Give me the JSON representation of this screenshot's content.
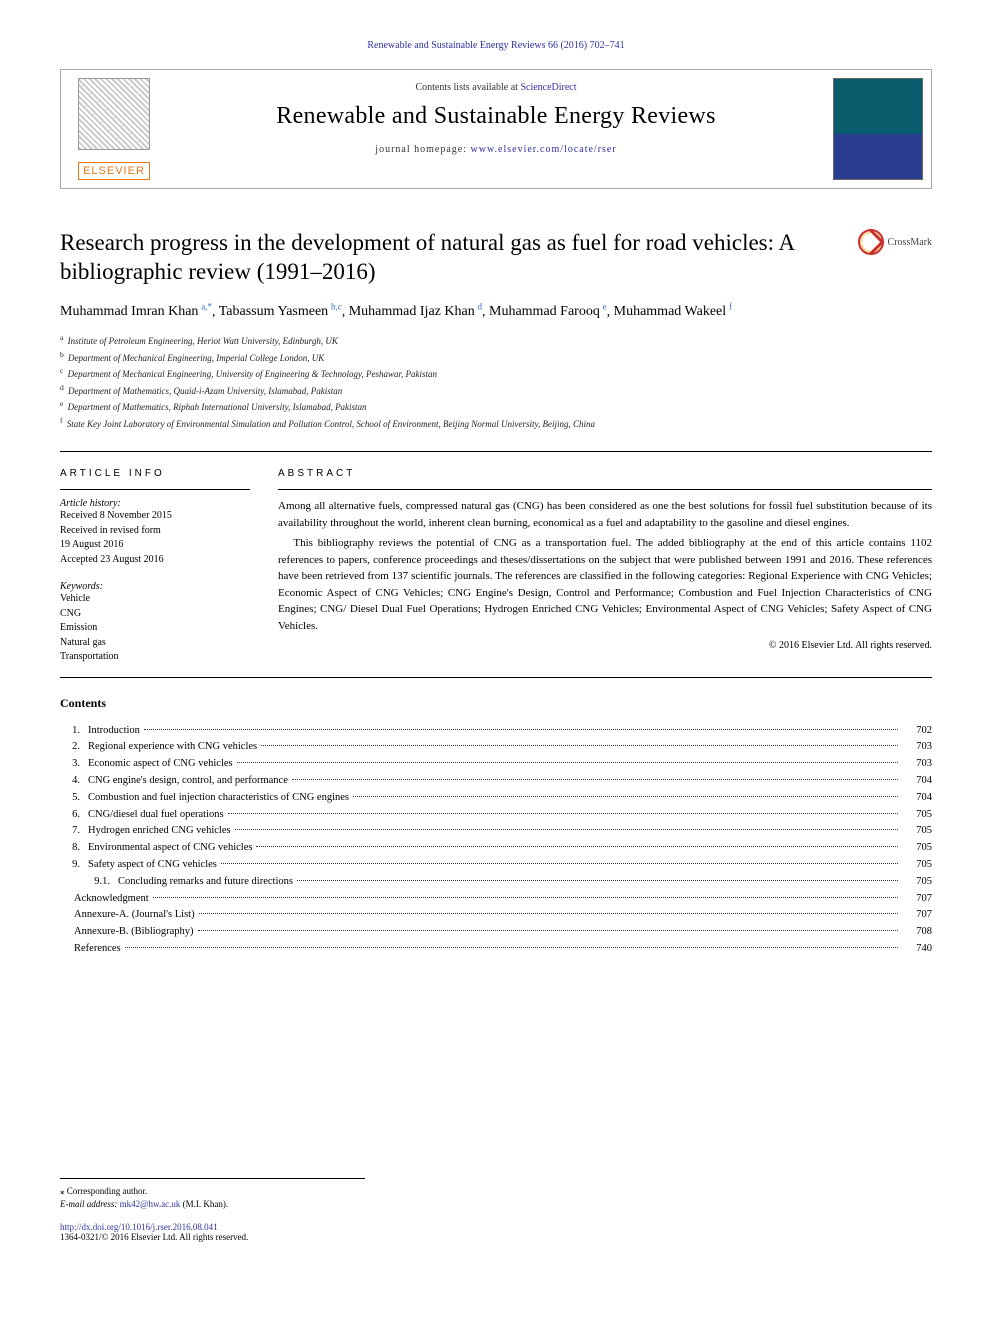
{
  "journal_ref_top": {
    "prefix": "Renewable and Sustainable Energy Reviews 66 (2016) 702–741"
  },
  "header": {
    "contents_prefix": "Contents lists available at ",
    "contents_link": "ScienceDirect",
    "journal_name": "Renewable and Sustainable Energy Reviews",
    "homepage_prefix": "journal homepage: ",
    "homepage_link": "www.elsevier.com/locate/rser",
    "elsevier_text": "ELSEVIER"
  },
  "crossmark_label": "CrossMark",
  "article": {
    "title": "Research progress in the development of natural gas as fuel for road vehicles: A bibliographic review (1991–2016)",
    "authors": [
      {
        "name": "Muhammad Imran Khan",
        "sup": "a,",
        "corr": true
      },
      {
        "name": "Tabassum Yasmeen",
        "sup": "b,c"
      },
      {
        "name": "Muhammad Ijaz Khan",
        "sup": "d"
      },
      {
        "name": "Muhammad Farooq",
        "sup": "e"
      },
      {
        "name": "Muhammad Wakeel",
        "sup": "f"
      }
    ],
    "affiliations": [
      {
        "key": "a",
        "text": "Institute of Petroleum Engineering, Heriot Watt University, Edinburgh, UK"
      },
      {
        "key": "b",
        "text": "Department of Mechanical Engineering, Imperial College London, UK"
      },
      {
        "key": "c",
        "text": "Department of Mechanical Engineering, University of Engineering & Technology, Peshawar, Pakistan"
      },
      {
        "key": "d",
        "text": "Department of Mathematics, Quaid-i-Azam University, Islamabad, Pakistan"
      },
      {
        "key": "e",
        "text": "Department of Mathematics, Riphah International University, Islamabad, Pakistan"
      },
      {
        "key": "f",
        "text": "State Key Joint Laboratory of Environmental Simulation and Pollution Control, School of Environment, Beijing Normal University, Beijing, China"
      }
    ]
  },
  "article_info": {
    "heading": "ARTICLE INFO",
    "history_label": "Article history:",
    "history": [
      "Received 8 November 2015",
      "Received in revised form",
      "19 August 2016",
      "Accepted 23 August 2016"
    ],
    "keywords_label": "Keywords:",
    "keywords": [
      "Vehicle",
      "CNG",
      "Emission",
      "Natural gas",
      "Transportation"
    ]
  },
  "abstract": {
    "heading": "ABSTRACT",
    "paragraphs": [
      "Among all alternative fuels, compressed natural gas (CNG) has been considered as one the best solutions for fossil fuel substitution because of its availability throughout the world, inherent clean burning, economical as a fuel and adaptability to the gasoline and diesel engines.",
      "This bibliography reviews the potential of CNG as a transportation fuel. The added bibliography at the end of this article contains 1102 references to papers, conference proceedings and theses/dissertations on the subject that were published between 1991 and 2016. These references have been retrieved from 137 scientific journals. The references are classified in the following categories: Regional Experience with CNG Vehicles; Economic Aspect of CNG Vehicles; CNG Engine's Design, Control and Performance; Combustion and Fuel Injection Characteristics of CNG Engines; CNG/ Diesel Dual Fuel Operations; Hydrogen Enriched CNG Vehicles; Environmental Aspect of CNG Vehicles; Safety Aspect of CNG Vehicles."
    ],
    "copyright": "© 2016 Elsevier Ltd. All rights reserved."
  },
  "contents": {
    "heading": "Contents",
    "items": [
      {
        "num": "1.",
        "level": 1,
        "title": "Introduction",
        "page": "702"
      },
      {
        "num": "2.",
        "level": 1,
        "title": "Regional experience with CNG vehicles",
        "page": "703"
      },
      {
        "num": "3.",
        "level": 1,
        "title": "Economic aspect of CNG vehicles",
        "page": "703"
      },
      {
        "num": "4.",
        "level": 1,
        "title": "CNG engine's design, control, and performance",
        "page": "704"
      },
      {
        "num": "5.",
        "level": 1,
        "title": "Combustion and fuel injection characteristics of CNG engines",
        "page": "704"
      },
      {
        "num": "6.",
        "level": 1,
        "title": "CNG/diesel dual fuel operations",
        "page": "705"
      },
      {
        "num": "7.",
        "level": 1,
        "title": "Hydrogen enriched CNG vehicles",
        "page": "705"
      },
      {
        "num": "8.",
        "level": 1,
        "title": "Environmental aspect of CNG vehicles",
        "page": "705"
      },
      {
        "num": "9.",
        "level": 1,
        "title": "Safety aspect of CNG vehicles",
        "page": "705"
      },
      {
        "num": "9.1.",
        "level": 2,
        "title": "Concluding remarks and future directions",
        "page": "705"
      },
      {
        "num": "",
        "level": 0,
        "title": "Acknowledgment",
        "page": "707"
      },
      {
        "num": "",
        "level": 0,
        "title": "Annexure-A. (Journal's List)",
        "page": "707"
      },
      {
        "num": "",
        "level": 0,
        "title": "Annexure-B. (Bibliography)",
        "page": "708"
      },
      {
        "num": "",
        "level": 0,
        "title": "References",
        "page": "740"
      }
    ]
  },
  "footnotes": {
    "corr_label": "⁎ Corresponding author.",
    "email_label": "E-mail address: ",
    "email": "mk42@hw.ac.uk",
    "email_suffix": " (M.I. Khan).",
    "doi": "http://dx.doi.org/10.1016/j.rser.2016.08.041",
    "issn_line": "1364-0321/© 2016 Elsevier Ltd. All rights reserved."
  },
  "colors": {
    "link": "#3030a0",
    "elsevier_orange": "#e67817",
    "divider": "#000000",
    "text": "#000000"
  }
}
